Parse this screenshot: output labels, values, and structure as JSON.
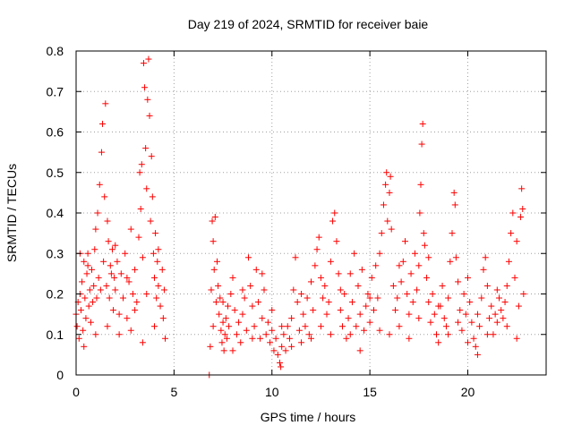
{
  "chart_data": {
    "type": "scatter",
    "title": "Day 219 of 2024, SRMTID for receiver baie",
    "xlabel": "GPS time / hours",
    "ylabel": "SRMTID / TECUs",
    "xlim": [
      0,
      24
    ],
    "ylim": [
      0,
      0.8
    ],
    "x_ticks": [
      0,
      5,
      10,
      15,
      20
    ],
    "x_tick_labels": [
      "0",
      "5",
      "10",
      "15",
      "20"
    ],
    "y_ticks": [
      0,
      0.1,
      0.2,
      0.3,
      0.4,
      0.5,
      0.6,
      0.7,
      0.8
    ],
    "y_tick_labels": [
      "0",
      "0.1",
      "0.2",
      "0.3",
      "0.4",
      "0.5",
      "0.6",
      "0.7",
      "0.8"
    ],
    "grid": true,
    "marker": "+",
    "color": "#ff0000",
    "series": [
      {
        "name": "SRMTID",
        "points": [
          [
            0.0,
            0.15
          ],
          [
            0.05,
            0.12
          ],
          [
            0.1,
            0.18
          ],
          [
            0.15,
            0.09
          ],
          [
            0.2,
            0.2
          ],
          [
            0.25,
            0.16
          ],
          [
            0.3,
            0.23
          ],
          [
            0.35,
            0.11
          ],
          [
            0.4,
            0.28
          ],
          [
            0.45,
            0.19
          ],
          [
            0.5,
            0.14
          ],
          [
            0.55,
            0.25
          ],
          [
            0.6,
            0.3
          ],
          [
            0.65,
            0.17
          ],
          [
            0.7,
            0.21
          ],
          [
            0.75,
            0.13
          ],
          [
            0.8,
            0.26
          ],
          [
            0.85,
            0.18
          ],
          [
            0.9,
            0.22
          ],
          [
            0.95,
            0.31
          ],
          [
            1.0,
            0.36
          ],
          [
            1.05,
            0.19
          ],
          [
            1.1,
            0.4
          ],
          [
            1.15,
            0.24
          ],
          [
            1.2,
            0.47
          ],
          [
            1.25,
            0.21
          ],
          [
            1.3,
            0.55
          ],
          [
            1.35,
            0.62
          ],
          [
            1.4,
            0.28
          ],
          [
            1.45,
            0.44
          ],
          [
            1.5,
            0.67
          ],
          [
            1.55,
            0.22
          ],
          [
            1.6,
            0.38
          ],
          [
            1.65,
            0.33
          ],
          [
            1.7,
            0.19
          ],
          [
            1.75,
            0.27
          ],
          [
            1.8,
            0.25
          ],
          [
            1.85,
            0.31
          ],
          [
            1.9,
            0.16
          ],
          [
            1.95,
            0.24
          ],
          [
            2.0,
            0.21
          ],
          [
            2.1,
            0.28
          ],
          [
            2.2,
            0.15
          ],
          [
            2.3,
            0.25
          ],
          [
            2.4,
            0.19
          ],
          [
            2.5,
            0.3
          ],
          [
            2.6,
            0.14
          ],
          [
            2.7,
            0.23
          ],
          [
            2.8,
            0.36
          ],
          [
            2.9,
            0.2
          ],
          [
            3.0,
            0.26
          ],
          [
            3.1,
            0.18
          ],
          [
            3.2,
            0.34
          ],
          [
            3.25,
            0.5
          ],
          [
            3.3,
            0.41
          ],
          [
            3.35,
            0.52
          ],
          [
            3.4,
            0.29
          ],
          [
            3.45,
            0.77
          ],
          [
            3.5,
            0.71
          ],
          [
            3.55,
            0.56
          ],
          [
            3.6,
            0.46
          ],
          [
            3.65,
            0.68
          ],
          [
            3.7,
            0.78
          ],
          [
            3.75,
            0.64
          ],
          [
            3.8,
            0.38
          ],
          [
            3.85,
            0.54
          ],
          [
            3.9,
            0.44
          ],
          [
            3.95,
            0.3
          ],
          [
            4.0,
            0.24
          ],
          [
            4.05,
            0.35
          ],
          [
            4.1,
            0.19
          ],
          [
            4.15,
            0.28
          ],
          [
            4.2,
            0.22
          ],
          [
            4.3,
            0.17
          ],
          [
            4.4,
            0.26
          ],
          [
            4.45,
            0.14
          ],
          [
            4.5,
            0.21
          ],
          [
            4.55,
            0.09
          ],
          [
            0.2,
            0.3
          ],
          [
            0.6,
            0.27
          ],
          [
            1.0,
            0.1
          ],
          [
            1.6,
            0.12
          ],
          [
            2.2,
            0.1
          ],
          [
            2.8,
            0.11
          ],
          [
            3.4,
            0.08
          ],
          [
            4.0,
            0.12
          ],
          [
            0.4,
            0.07
          ],
          [
            2.0,
            0.32
          ],
          [
            2.6,
            0.24
          ],
          [
            3.0,
            0.16
          ],
          [
            3.6,
            0.2
          ],
          [
            4.2,
            0.31
          ],
          [
            6.8,
            0.0
          ],
          [
            6.85,
            0.07
          ],
          [
            6.9,
            0.21
          ],
          [
            6.95,
            0.38
          ],
          [
            7.0,
            0.33
          ],
          [
            7.05,
            0.26
          ],
          [
            7.1,
            0.39
          ],
          [
            7.15,
            0.18
          ],
          [
            7.2,
            0.28
          ],
          [
            7.25,
            0.22
          ],
          [
            7.3,
            0.15
          ],
          [
            7.35,
            0.19
          ],
          [
            7.4,
            0.11
          ],
          [
            7.45,
            0.08
          ],
          [
            7.5,
            0.13
          ],
          [
            7.55,
            0.06
          ],
          [
            7.6,
            0.1
          ],
          [
            7.65,
            0.14
          ],
          [
            7.7,
            0.09
          ],
          [
            7.75,
            0.17
          ],
          [
            7.8,
            0.12
          ],
          [
            7.9,
            0.2
          ],
          [
            8.0,
            0.24
          ],
          [
            8.1,
            0.16
          ],
          [
            8.2,
            0.1
          ],
          [
            8.3,
            0.13
          ],
          [
            8.4,
            0.08
          ],
          [
            8.5,
            0.15
          ],
          [
            8.6,
            0.19
          ],
          [
            8.7,
            0.11
          ],
          [
            8.8,
            0.29
          ],
          [
            8.9,
            0.22
          ],
          [
            9.0,
            0.17
          ],
          [
            9.1,
            0.12
          ],
          [
            9.2,
            0.26
          ],
          [
            9.3,
            0.18
          ],
          [
            9.4,
            0.09
          ],
          [
            9.5,
            0.14
          ],
          [
            9.6,
            0.21
          ],
          [
            9.7,
            0.1
          ],
          [
            9.8,
            0.13
          ],
          [
            9.9,
            0.08
          ],
          [
            10.0,
            0.11
          ],
          [
            10.1,
            0.06
          ],
          [
            10.2,
            0.09
          ],
          [
            10.3,
            0.05
          ],
          [
            10.4,
            0.03
          ],
          [
            10.45,
            0.02
          ],
          [
            10.5,
            0.07
          ],
          [
            10.6,
            0.1
          ],
          [
            10.7,
            0.06
          ],
          [
            10.8,
            0.12
          ],
          [
            10.9,
            0.09
          ],
          [
            11.0,
            0.14
          ],
          [
            11.1,
            0.21
          ],
          [
            11.2,
            0.29
          ],
          [
            11.3,
            0.18
          ],
          [
            11.4,
            0.11
          ],
          [
            11.5,
            0.08
          ],
          [
            11.6,
            0.15
          ],
          [
            11.7,
            0.12
          ],
          [
            11.8,
            0.19
          ],
          [
            11.9,
            0.1
          ],
          [
            12.0,
            0.23
          ],
          [
            12.1,
            0.16
          ],
          [
            12.2,
            0.27
          ],
          [
            12.3,
            0.31
          ],
          [
            12.4,
            0.34
          ],
          [
            12.5,
            0.24
          ],
          [
            12.6,
            0.19
          ],
          [
            12.7,
            0.22
          ],
          [
            12.8,
            0.15
          ],
          [
            12.9,
            0.18
          ],
          [
            13.0,
            0.28
          ],
          [
            13.1,
            0.38
          ],
          [
            13.2,
            0.4
          ],
          [
            13.3,
            0.33
          ],
          [
            13.4,
            0.25
          ],
          [
            13.5,
            0.16
          ],
          [
            13.6,
            0.12
          ],
          [
            13.7,
            0.2
          ],
          [
            13.8,
            0.09
          ],
          [
            13.9,
            0.14
          ],
          [
            14.0,
            0.25
          ],
          [
            14.1,
            0.18
          ],
          [
            14.2,
            0.3
          ],
          [
            14.3,
            0.12
          ],
          [
            14.4,
            0.22
          ],
          [
            14.5,
            0.15
          ],
          [
            14.6,
            0.26
          ],
          [
            14.7,
            0.11
          ],
          [
            14.8,
            0.17
          ],
          [
            14.9,
            0.2
          ],
          [
            15.0,
            0.13
          ],
          [
            15.1,
            0.24
          ],
          [
            15.2,
            0.16
          ],
          [
            15.3,
            0.27
          ],
          [
            15.4,
            0.19
          ],
          [
            15.5,
            0.3
          ],
          [
            15.6,
            0.35
          ],
          [
            15.7,
            0.42
          ],
          [
            15.8,
            0.47
          ],
          [
            15.85,
            0.5
          ],
          [
            15.9,
            0.38
          ],
          [
            16.0,
            0.45
          ],
          [
            16.05,
            0.49
          ],
          [
            16.1,
            0.36
          ],
          [
            16.2,
            0.22
          ],
          [
            16.3,
            0.16
          ],
          [
            16.4,
            0.19
          ],
          [
            16.5,
            0.12
          ],
          [
            16.6,
            0.23
          ],
          [
            16.7,
            0.28
          ],
          [
            16.8,
            0.33
          ],
          [
            16.9,
            0.2
          ],
          [
            17.0,
            0.15
          ],
          [
            17.1,
            0.25
          ],
          [
            17.2,
            0.18
          ],
          [
            17.3,
            0.3
          ],
          [
            17.4,
            0.21
          ],
          [
            17.5,
            0.27
          ],
          [
            17.55,
            0.4
          ],
          [
            17.6,
            0.47
          ],
          [
            17.65,
            0.57
          ],
          [
            17.7,
            0.62
          ],
          [
            17.75,
            0.35
          ],
          [
            17.8,
            0.32
          ],
          [
            17.9,
            0.24
          ],
          [
            18.0,
            0.18
          ],
          [
            18.1,
            0.13
          ],
          [
            18.2,
            0.2
          ],
          [
            18.3,
            0.15
          ],
          [
            18.4,
            0.1
          ],
          [
            18.5,
            0.08
          ],
          [
            18.6,
            0.17
          ],
          [
            18.7,
            0.22
          ],
          [
            18.8,
            0.14
          ],
          [
            18.9,
            0.12
          ],
          [
            19.0,
            0.19
          ],
          [
            19.1,
            0.28
          ],
          [
            19.2,
            0.35
          ],
          [
            19.3,
            0.45
          ],
          [
            19.35,
            0.42
          ],
          [
            19.4,
            0.29
          ],
          [
            19.5,
            0.23
          ],
          [
            19.6,
            0.16
          ],
          [
            19.7,
            0.11
          ],
          [
            19.8,
            0.2
          ],
          [
            19.9,
            0.15
          ],
          [
            20.0,
            0.24
          ],
          [
            20.1,
            0.18
          ],
          [
            20.2,
            0.13
          ],
          [
            20.3,
            0.09
          ],
          [
            20.4,
            0.07
          ],
          [
            20.5,
            0.05
          ],
          [
            20.6,
            0.12
          ],
          [
            20.7,
            0.19
          ],
          [
            20.8,
            0.26
          ],
          [
            20.9,
            0.29
          ],
          [
            21.0,
            0.22
          ],
          [
            21.1,
            0.14
          ],
          [
            21.2,
            0.17
          ],
          [
            21.3,
            0.1
          ],
          [
            21.4,
            0.15
          ],
          [
            21.5,
            0.13
          ],
          [
            21.6,
            0.19
          ],
          [
            21.7,
            0.16
          ],
          [
            21.8,
            0.14
          ],
          [
            21.9,
            0.18
          ],
          [
            22.0,
            0.22
          ],
          [
            22.1,
            0.28
          ],
          [
            22.2,
            0.35
          ],
          [
            22.3,
            0.4
          ],
          [
            22.4,
            0.24
          ],
          [
            22.5,
            0.33
          ],
          [
            22.6,
            0.17
          ],
          [
            22.7,
            0.39
          ],
          [
            22.75,
            0.46
          ],
          [
            22.8,
            0.41
          ],
          [
            22.85,
            0.2
          ],
          [
            7.0,
            0.12
          ],
          [
            7.5,
            0.18
          ],
          [
            8.0,
            0.06
          ],
          [
            8.5,
            0.21
          ],
          [
            9.0,
            0.09
          ],
          [
            9.5,
            0.25
          ],
          [
            10.0,
            0.16
          ],
          [
            10.5,
            0.12
          ],
          [
            11.0,
            0.07
          ],
          [
            11.5,
            0.2
          ],
          [
            12.0,
            0.09
          ],
          [
            12.5,
            0.12
          ],
          [
            13.0,
            0.1
          ],
          [
            13.5,
            0.21
          ],
          [
            14.0,
            0.1
          ],
          [
            14.5,
            0.06
          ],
          [
            15.0,
            0.19
          ],
          [
            15.5,
            0.11
          ],
          [
            16.0,
            0.1
          ],
          [
            16.5,
            0.27
          ],
          [
            17.0,
            0.09
          ],
          [
            17.5,
            0.14
          ],
          [
            18.0,
            0.29
          ],
          [
            18.5,
            0.17
          ],
          [
            19.0,
            0.1
          ],
          [
            19.5,
            0.13
          ],
          [
            20.0,
            0.08
          ],
          [
            20.5,
            0.15
          ],
          [
            21.0,
            0.1
          ],
          [
            21.5,
            0.21
          ],
          [
            22.0,
            0.12
          ],
          [
            22.5,
            0.09
          ]
        ]
      }
    ]
  }
}
